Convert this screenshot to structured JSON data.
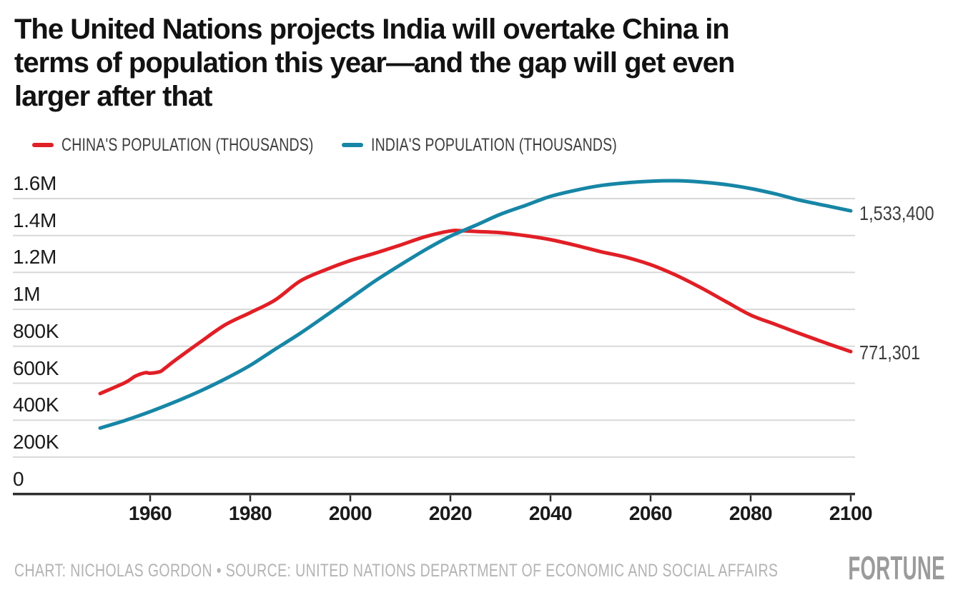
{
  "header": {
    "title_lines": [
      "The United Nations projects India will overtake China in",
      "terms of population this year—and the gap will get even",
      "larger after that"
    ]
  },
  "legend": {
    "items": [
      {
        "label": "CHINA'S POPULATION (THOUSANDS)",
        "color": "#e11f26"
      },
      {
        "label": "INDIA'S POPULATION (THOUSANDS)",
        "color": "#1786a6"
      }
    ]
  },
  "chart_data": {
    "type": "line",
    "title": "The United Nations projects India will overtake China in terms of population this year—and the gap will get even larger after that",
    "unit": "thousands of people",
    "xlabel": "",
    "ylabel": "",
    "grid": true,
    "legend_position": "top-left",
    "xlim": [
      1950,
      2100
    ],
    "ylim": [
      0,
      1600000
    ],
    "xticks": [
      1960,
      1980,
      2000,
      2020,
      2040,
      2060,
      2080,
      2100
    ],
    "yticks": [
      {
        "value": 1600000,
        "label": "1.6M"
      },
      {
        "value": 1400000,
        "label": "1.4M"
      },
      {
        "value": 1200000,
        "label": "1.2M"
      },
      {
        "value": 1000000,
        "label": "1M"
      },
      {
        "value": 800000,
        "label": "800K"
      },
      {
        "value": 600000,
        "label": "600K"
      },
      {
        "value": 400000,
        "label": "400K"
      },
      {
        "value": 200000,
        "label": "200K"
      },
      {
        "value": 0,
        "label": "0"
      }
    ],
    "series": [
      {
        "name": "CHINA'S POPULATION (THOUSANDS)",
        "color": "#e11f26",
        "end_label": "771,301",
        "points": [
          [
            1950,
            544044
          ],
          [
            1955,
            603578
          ],
          [
            1957,
            637408
          ],
          [
            1959,
            657000
          ],
          [
            1960,
            654171
          ],
          [
            1962,
            663000
          ],
          [
            1963,
            682000
          ],
          [
            1965,
            724219
          ],
          [
            1970,
            822534
          ],
          [
            1975,
            916395
          ],
          [
            1980,
            982372
          ],
          [
            1985,
            1051040
          ],
          [
            1990,
            1153704
          ],
          [
            1995,
            1213852
          ],
          [
            2000,
            1264099
          ],
          [
            2005,
            1304888
          ],
          [
            2010,
            1348191
          ],
          [
            2015,
            1393715
          ],
          [
            2020,
            1424930
          ],
          [
            2022,
            1425887
          ],
          [
            2025,
            1421896
          ],
          [
            2030,
            1415606
          ],
          [
            2035,
            1399203
          ],
          [
            2040,
            1377557
          ],
          [
            2045,
            1347000
          ],
          [
            2050,
            1312636
          ],
          [
            2055,
            1283000
          ],
          [
            2060,
            1242000
          ],
          [
            2065,
            1186000
          ],
          [
            2070,
            1118000
          ],
          [
            2075,
            1043000
          ],
          [
            2080,
            969000
          ],
          [
            2085,
            918000
          ],
          [
            2090,
            867000
          ],
          [
            2095,
            818000
          ],
          [
            2100,
            771301
          ]
        ]
      },
      {
        "name": "INDIA'S POPULATION (THOUSANDS)",
        "color": "#1786a6",
        "end_label": "1,533,400",
        "points": [
          [
            1950,
            357021
          ],
          [
            1955,
            398578
          ],
          [
            1960,
            445955
          ],
          [
            1965,
            499123
          ],
          [
            1970,
            557501
          ],
          [
            1975,
            623103
          ],
          [
            1980,
            696828
          ],
          [
            1985,
            784360
          ],
          [
            1990,
            870452
          ],
          [
            1995,
            963923
          ],
          [
            2000,
            1059634
          ],
          [
            2005,
            1154639
          ],
          [
            2010,
            1240614
          ],
          [
            2015,
            1322867
          ],
          [
            2020,
            1396387
          ],
          [
            2025,
            1454607
          ],
          [
            2030,
            1514994
          ],
          [
            2035,
            1563000
          ],
          [
            2040,
            1612000
          ],
          [
            2045,
            1645000
          ],
          [
            2050,
            1670491
          ],
          [
            2055,
            1685000
          ],
          [
            2060,
            1694000
          ],
          [
            2065,
            1696800
          ],
          [
            2070,
            1690000
          ],
          [
            2075,
            1676000
          ],
          [
            2080,
            1654000
          ],
          [
            2085,
            1625000
          ],
          [
            2090,
            1590000
          ],
          [
            2095,
            1562000
          ],
          [
            2100,
            1533400
          ]
        ]
      }
    ]
  },
  "footer": {
    "credit": "CHART: NICHOLAS GORDON • SOURCE: UNITED NATIONS DEPARTMENT OF ECONOMIC AND SOCIAL AFFAIRS",
    "brand": "FORTUNE"
  },
  "colors": {
    "china_line": "#e11f26",
    "india_line": "#1786a6",
    "gridline": "#d8d8d8",
    "axis": "#2e2e2e",
    "title_text": "#121212",
    "muted_text": "#b3b3b3",
    "brand_gray": "#9b9b9b"
  }
}
